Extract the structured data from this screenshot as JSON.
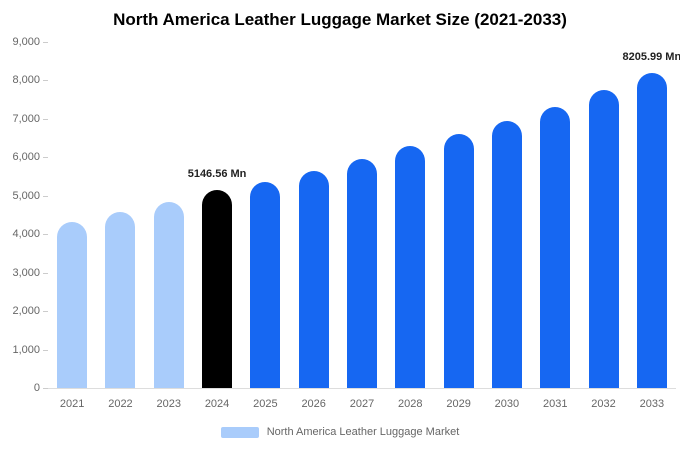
{
  "title": "North America Leather Luggage Market Size (2021-2033)",
  "legend": {
    "label": "North America Leather Luggage Market",
    "swatch_color": "#a9ccfb"
  },
  "colors": {
    "historical": "#a9ccfb",
    "highlight": "#000000",
    "forecast": "#1667f2"
  },
  "chart_data": {
    "type": "bar",
    "title": "North America Leather Luggage Market Size (2021-2033)",
    "xlabel": "",
    "ylabel": "",
    "ylim": [
      0,
      9000
    ],
    "ytick_step": 1000,
    "ytick_labels": [
      "0",
      "1,000",
      "2,000",
      "3,000",
      "4,000",
      "5,000",
      "6,000",
      "7,000",
      "8,000",
      "9,000"
    ],
    "legend_position": "bottom",
    "grid": false,
    "categories": [
      "2021",
      "2022",
      "2023",
      "2024",
      "2025",
      "2026",
      "2027",
      "2028",
      "2029",
      "2030",
      "2031",
      "2032",
      "2033"
    ],
    "values": [
      4320,
      4570,
      4830,
      5146.56,
      5360,
      5650,
      5950,
      6290,
      6600,
      6950,
      7310,
      7760,
      8205.99
    ],
    "bar_color_keys": [
      "historical",
      "historical",
      "historical",
      "highlight",
      "forecast",
      "forecast",
      "forecast",
      "forecast",
      "forecast",
      "forecast",
      "forecast",
      "forecast",
      "forecast"
    ],
    "annotations": [
      {
        "category": "2024",
        "index": 3,
        "text": "5146.56 Mn"
      },
      {
        "category": "2033",
        "index": 12,
        "text": "8205.99 Mn"
      }
    ]
  }
}
